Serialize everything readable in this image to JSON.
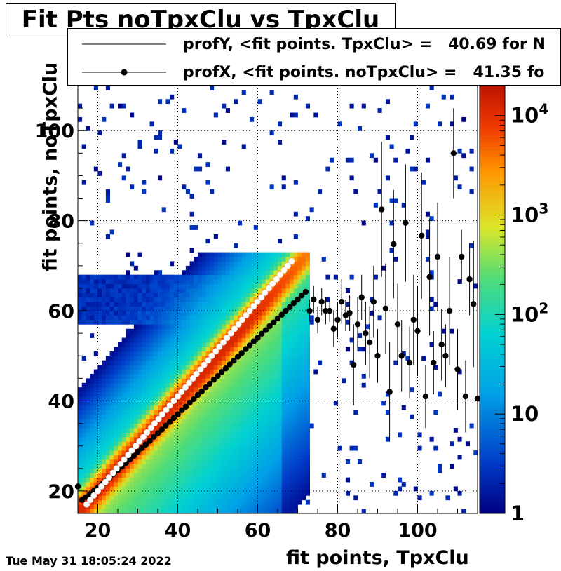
{
  "title": "Fit Pts noTpxClu vs TpxClu",
  "timestamp": "Tue May 31 18:05:24 2022",
  "colors": {
    "background": "#ffffff",
    "axis": "#000000",
    "profX_marker": "#000000",
    "profY_marker": "#ffffff"
  },
  "legend": [
    {
      "label": "profY, <fit points. TpxClu> =   40.69 for N",
      "style": "line",
      "marker": "none"
    },
    {
      "label": "profX, <fit points. noTpxClu> =   41.35 fo",
      "style": "line-marker",
      "marker": "filled-circle"
    }
  ],
  "chart_data": {
    "type": "heatmap",
    "title": "Fit Pts noTpxClu vs TpxClu",
    "xlabel": "fit points, TpxClu",
    "ylabel": "fit points, noTpxClu",
    "xlim": [
      15,
      115
    ],
    "ylim": [
      15,
      110
    ],
    "x_ticks": [
      20,
      40,
      60,
      80,
      100
    ],
    "y_ticks": [
      20,
      40,
      60,
      80,
      100
    ],
    "grid": true,
    "colorbar": {
      "scale": "log",
      "range": [
        1,
        20000
      ],
      "ticks": [
        "1",
        "10",
        "10^2",
        "10^3",
        "10^4"
      ],
      "palette": "rainbow"
    },
    "heatmap_description": {
      "ridge": "peak density along y = x from 15 to 72 (~10^4 counts)",
      "sparse_region": "scattered low-count bins (1-10) for x > 72 and y up to 110"
    },
    "series": [
      {
        "name": "profX",
        "marker": "filled-circle",
        "color": "#000000",
        "points": [
          [
            15,
            21
          ],
          [
            16,
            18
          ],
          [
            17,
            18.6
          ],
          [
            18,
            19.3
          ],
          [
            19,
            20
          ],
          [
            20,
            20.7
          ],
          [
            21,
            21.5
          ],
          [
            22,
            22.2
          ],
          [
            23,
            23
          ],
          [
            24,
            23.8
          ],
          [
            25,
            24.6
          ],
          [
            26,
            25.4
          ],
          [
            27,
            26.2
          ],
          [
            28,
            27
          ],
          [
            29,
            27.8
          ],
          [
            30,
            28.7
          ],
          [
            31,
            29.5
          ],
          [
            32,
            30.3
          ],
          [
            33,
            31.1
          ],
          [
            34,
            32
          ],
          [
            35,
            32.8
          ],
          [
            36,
            33.6
          ],
          [
            37,
            34.5
          ],
          [
            38,
            35.3
          ],
          [
            39,
            36.2
          ],
          [
            40,
            37
          ],
          [
            41,
            37.9
          ],
          [
            42,
            38.7
          ],
          [
            43,
            39.6
          ],
          [
            44,
            40.4
          ],
          [
            45,
            41.3
          ],
          [
            46,
            42.1
          ],
          [
            47,
            43
          ],
          [
            48,
            43.8
          ],
          [
            49,
            44.7
          ],
          [
            50,
            45.5
          ],
          [
            51,
            46.4
          ],
          [
            52,
            47.2
          ],
          [
            53,
            48.1
          ],
          [
            54,
            48.9
          ],
          [
            55,
            49.8
          ],
          [
            56,
            50.6
          ],
          [
            57,
            51.5
          ],
          [
            58,
            52.3
          ],
          [
            59,
            53.2
          ],
          [
            60,
            54
          ],
          [
            61,
            54.9
          ],
          [
            62,
            55.7
          ],
          [
            63,
            56.6
          ],
          [
            64,
            57.4
          ],
          [
            65,
            58.3
          ],
          [
            66,
            59.1
          ],
          [
            67,
            60
          ],
          [
            68,
            60.8
          ],
          [
            69,
            61.7
          ],
          [
            70,
            62.5
          ],
          [
            71,
            63.4
          ],
          [
            72,
            64.2
          ],
          [
            73,
            60
          ],
          [
            74,
            62.5
          ],
          [
            75,
            58
          ],
          [
            76,
            62
          ],
          [
            77,
            60
          ],
          [
            78,
            60
          ],
          [
            79,
            56
          ],
          [
            80,
            58
          ],
          [
            81,
            62
          ],
          [
            82,
            59
          ],
          [
            83,
            59.5
          ],
          [
            84,
            48
          ],
          [
            85,
            57
          ],
          [
            86,
            63
          ],
          [
            87,
            55
          ],
          [
            88,
            53
          ],
          [
            89,
            62
          ],
          [
            90,
            50
          ],
          [
            91,
            82.5
          ],
          [
            92,
            60.5
          ],
          [
            93,
            42
          ],
          [
            94,
            74.8
          ],
          [
            95,
            57
          ],
          [
            96,
            50
          ],
          [
            97,
            79.5
          ],
          [
            98,
            48.5
          ],
          [
            99,
            58
          ],
          [
            100,
            55.5
          ],
          [
            101,
            76.7
          ],
          [
            102,
            41
          ],
          [
            103,
            67.5
          ],
          [
            104,
            48.5
          ],
          [
            105,
            72
          ],
          [
            106,
            52.5
          ],
          [
            107,
            50
          ],
          [
            108,
            60
          ],
          [
            109,
            95
          ],
          [
            110,
            47
          ],
          [
            111,
            72
          ],
          [
            112,
            41
          ],
          [
            113,
            67
          ],
          [
            114,
            61.5
          ],
          [
            115,
            40.5
          ]
        ],
        "error_bars": [
          [
            73,
            2.5
          ],
          [
            74,
            3
          ],
          [
            75,
            3
          ],
          [
            76,
            3
          ],
          [
            77,
            3
          ],
          [
            78,
            2.5
          ],
          [
            79,
            4
          ],
          [
            80,
            4
          ],
          [
            81,
            5
          ],
          [
            82,
            3.5
          ],
          [
            83,
            4
          ],
          [
            84,
            9
          ],
          [
            85,
            6
          ],
          [
            86,
            5
          ],
          [
            87,
            7
          ],
          [
            88,
            8
          ],
          [
            89,
            8
          ],
          [
            90,
            6
          ],
          [
            91,
            15
          ],
          [
            92,
            10
          ],
          [
            93,
            11
          ],
          [
            94,
            12
          ],
          [
            95,
            9
          ],
          [
            96,
            8
          ],
          [
            97,
            13
          ],
          [
            98,
            8
          ],
          [
            99,
            10
          ],
          [
            100,
            10
          ],
          [
            101,
            14
          ],
          [
            102,
            7
          ],
          [
            103,
            13
          ],
          [
            104,
            7
          ],
          [
            105,
            12
          ],
          [
            106,
            8
          ],
          [
            107,
            7
          ],
          [
            108,
            12
          ],
          [
            109,
            10
          ],
          [
            110,
            9
          ],
          [
            111,
            6
          ],
          [
            112,
            8
          ],
          [
            113,
            8
          ],
          [
            114,
            14
          ],
          [
            115,
            9
          ]
        ]
      },
      {
        "name": "profY",
        "marker": "open-circle",
        "color": "#ffffff",
        "points": [
          [
            17.2,
            17
          ],
          [
            18.1,
            18
          ],
          [
            19,
            19
          ],
          [
            20,
            20
          ],
          [
            20.9,
            21
          ],
          [
            21.9,
            22
          ],
          [
            22.8,
            23
          ],
          [
            23.8,
            24
          ],
          [
            24.7,
            25
          ],
          [
            25.7,
            26
          ],
          [
            26.6,
            27
          ],
          [
            27.6,
            28
          ],
          [
            28.5,
            29
          ],
          [
            29.5,
            30
          ],
          [
            30.4,
            31
          ],
          [
            31.4,
            32
          ],
          [
            32.3,
            33
          ],
          [
            33.3,
            34
          ],
          [
            34.2,
            35
          ],
          [
            35.2,
            36
          ],
          [
            36.1,
            37
          ],
          [
            37.1,
            38
          ],
          [
            38,
            39
          ],
          [
            39,
            40
          ],
          [
            40,
            41
          ],
          [
            40.9,
            42
          ],
          [
            41.9,
            43
          ],
          [
            42.8,
            44
          ],
          [
            43.8,
            45
          ],
          [
            44.7,
            46
          ],
          [
            45.7,
            47
          ],
          [
            46.6,
            48
          ],
          [
            47.6,
            49
          ],
          [
            48.5,
            50
          ],
          [
            49.5,
            51
          ],
          [
            50.4,
            52
          ],
          [
            51.4,
            53
          ],
          [
            52.3,
            54
          ],
          [
            53.3,
            55
          ],
          [
            54.2,
            56
          ],
          [
            55.2,
            57
          ],
          [
            56.1,
            58
          ],
          [
            57.1,
            59
          ],
          [
            58,
            60
          ],
          [
            59,
            61
          ],
          [
            59.9,
            62
          ],
          [
            60.9,
            63
          ],
          [
            61.8,
            64
          ],
          [
            62.8,
            65
          ],
          [
            63.7,
            66
          ],
          [
            64.7,
            67
          ],
          [
            65.6,
            68
          ],
          [
            66.6,
            69
          ],
          [
            67.5,
            70
          ],
          [
            68.5,
            71
          ]
        ]
      }
    ]
  }
}
